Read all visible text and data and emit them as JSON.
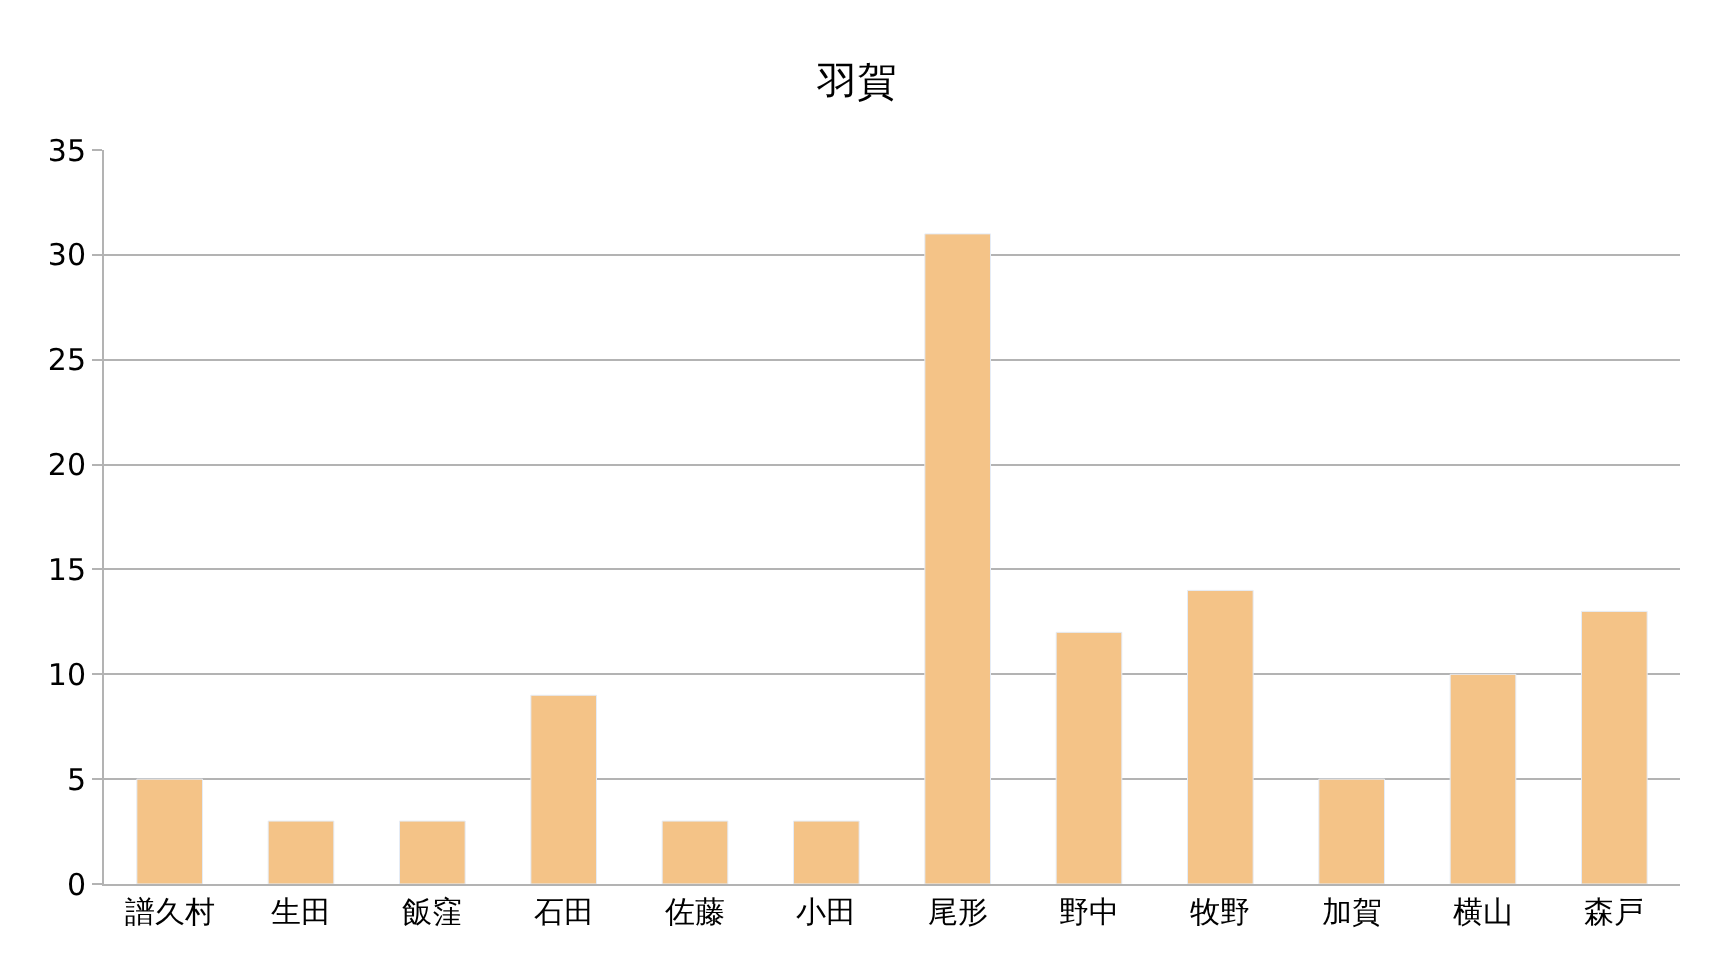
{
  "chart_data": {
    "type": "bar",
    "title": "羽賀",
    "categories": [
      "譜久村",
      "生田",
      "飯窪",
      "石田",
      "佐藤",
      "小田",
      "尾形",
      "野中",
      "牧野",
      "加賀",
      "横山",
      "森戸"
    ],
    "values": [
      5,
      3,
      3,
      9,
      3,
      3,
      31,
      12,
      14,
      5,
      10,
      13
    ],
    "color": "#f4c387",
    "ylim": [
      0,
      35
    ],
    "yticks": [
      0,
      5,
      10,
      15,
      20,
      25,
      30,
      35
    ],
    "grid": "y"
  }
}
